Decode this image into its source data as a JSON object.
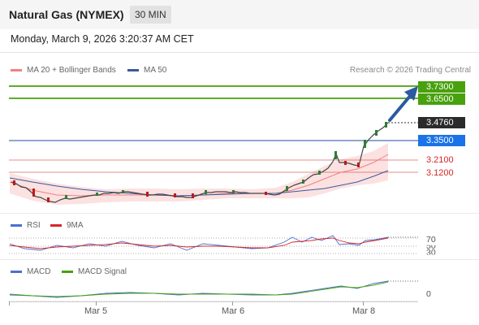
{
  "header": {
    "title": "Natural Gas (NYMEX)",
    "timeframe": "30 MIN"
  },
  "datetime": "Monday, March 9, 2026 3:20:37 AM CET",
  "legend": {
    "ma20": "MA 20 + Bollinger Bands",
    "ma50": "MA 50",
    "credit": "Research © 2026 Trading Central"
  },
  "levels": [
    {
      "value": "3.7300",
      "style": "resistance"
    },
    {
      "value": "3.6500",
      "style": "resistance"
    },
    {
      "value": "3.4760",
      "style": "last"
    },
    {
      "value": "3.3500",
      "style": "pivot"
    },
    {
      "value": "3.2100",
      "style": "support"
    },
    {
      "value": "3.1200",
      "style": "support"
    }
  ],
  "rsi": {
    "legend": "RSI",
    "ma_legend": "9MA",
    "levels": [
      "70",
      "50",
      "30"
    ]
  },
  "macd": {
    "legend": "MACD",
    "signal_legend": "MACD Signal",
    "zero": "0"
  },
  "x_labels": [
    "Mar 5",
    "Mar 6",
    "Mar 8"
  ],
  "colors": {
    "resistance": "#48a10d",
    "pivot": "#1f4e9c",
    "support": "#d62728",
    "ma20": "#f08080",
    "ma50": "#3a5a9c",
    "rsi": "#4a6fd0",
    "rsi_ma": "#d62728",
    "macd": "#4a6fd0",
    "macd_signal": "#48a10d",
    "up": "#2e7d32",
    "down": "#b71c1c"
  }
}
